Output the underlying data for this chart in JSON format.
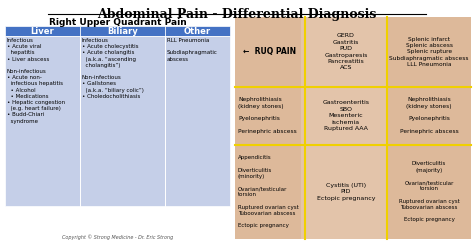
{
  "title": "Abdominal Pain - Differential Diagnosis",
  "subtitle": "Right Upper Quadrant Pain",
  "copyright": "Copyright © Strong Medicine - Dr. Eric Strong",
  "table_header_color": "#4472c4",
  "table_header_text_color": "#ffffff",
  "table_bg_color": "#c5cfe8",
  "table_headers": [
    "Liver",
    "Biliary",
    "Other"
  ],
  "liver_infectious": "Infectious\n• Acute viral\n  hepatitis\n• Liver abscess",
  "liver_noninfectious": "Non-infectious\n• Acute non-\n  infectious hepatitis\n  • Alcohol\n  • Medications\n• Hepatic congestion\n  (e.g. heart failure)\n• Budd-Chiari\n  syndrome",
  "biliary_infectious": "Infectious\n• Acute cholecystitis\n• Acute cholangitis\n  (a.k.a. “ascending\n  cholangitis”)",
  "biliary_noninfectious": "Non-infectious\n• Gallstones\n  (a.k.a. “biliary colic”)\n• Choledocholithiasis",
  "other_col": "RLL Pneumonia\n\nSubdiaphragmatic\nabscess",
  "ruq_label": "←  RUQ PAIN",
  "ruq_upper": "GERD\nGastritis\nPUD\nGastroparesis\nPancreatitis\nACS",
  "ruq_right_upper": "Splenic infarct\nSplenic abscess\nSplenic rupture\nSubdiaphragmatic abscess\nLLL Pneumonia",
  "ruq_left_mid": "Nephrolithiasis\n(kidney stones)\n\nPyelonephritis\n\nPerinephric abscess",
  "ruq_mid": "Gastroenteritis\nSBO\nMesenteric\nischemia\nRuptured AAA",
  "ruq_right_mid": "Nephrolithiasis\n(kidney stones)\n\nPyelonephritis\n\nPerinephric abscess",
  "ruq_left_lower": "Appendicitis\n\nDiverticulitis\n(minority)\n\nOvarian/testicular\ntorsion\n\nRuptured ovarian cyst\nTuboovarian abscess\n\nEctopic pregnancy",
  "ruq_mid_lower": "Cystitis (UTI)\nPID\nEctopic pregnancy",
  "ruq_right_lower": "Diverticulitis\n(majority)\n\nOvarian/testicular\ntorsion\n\nRuptured ovarian cyst\nTuboovarian abscess\n\nEctopic pregnancy",
  "yellow_line_color": "#f0d000"
}
